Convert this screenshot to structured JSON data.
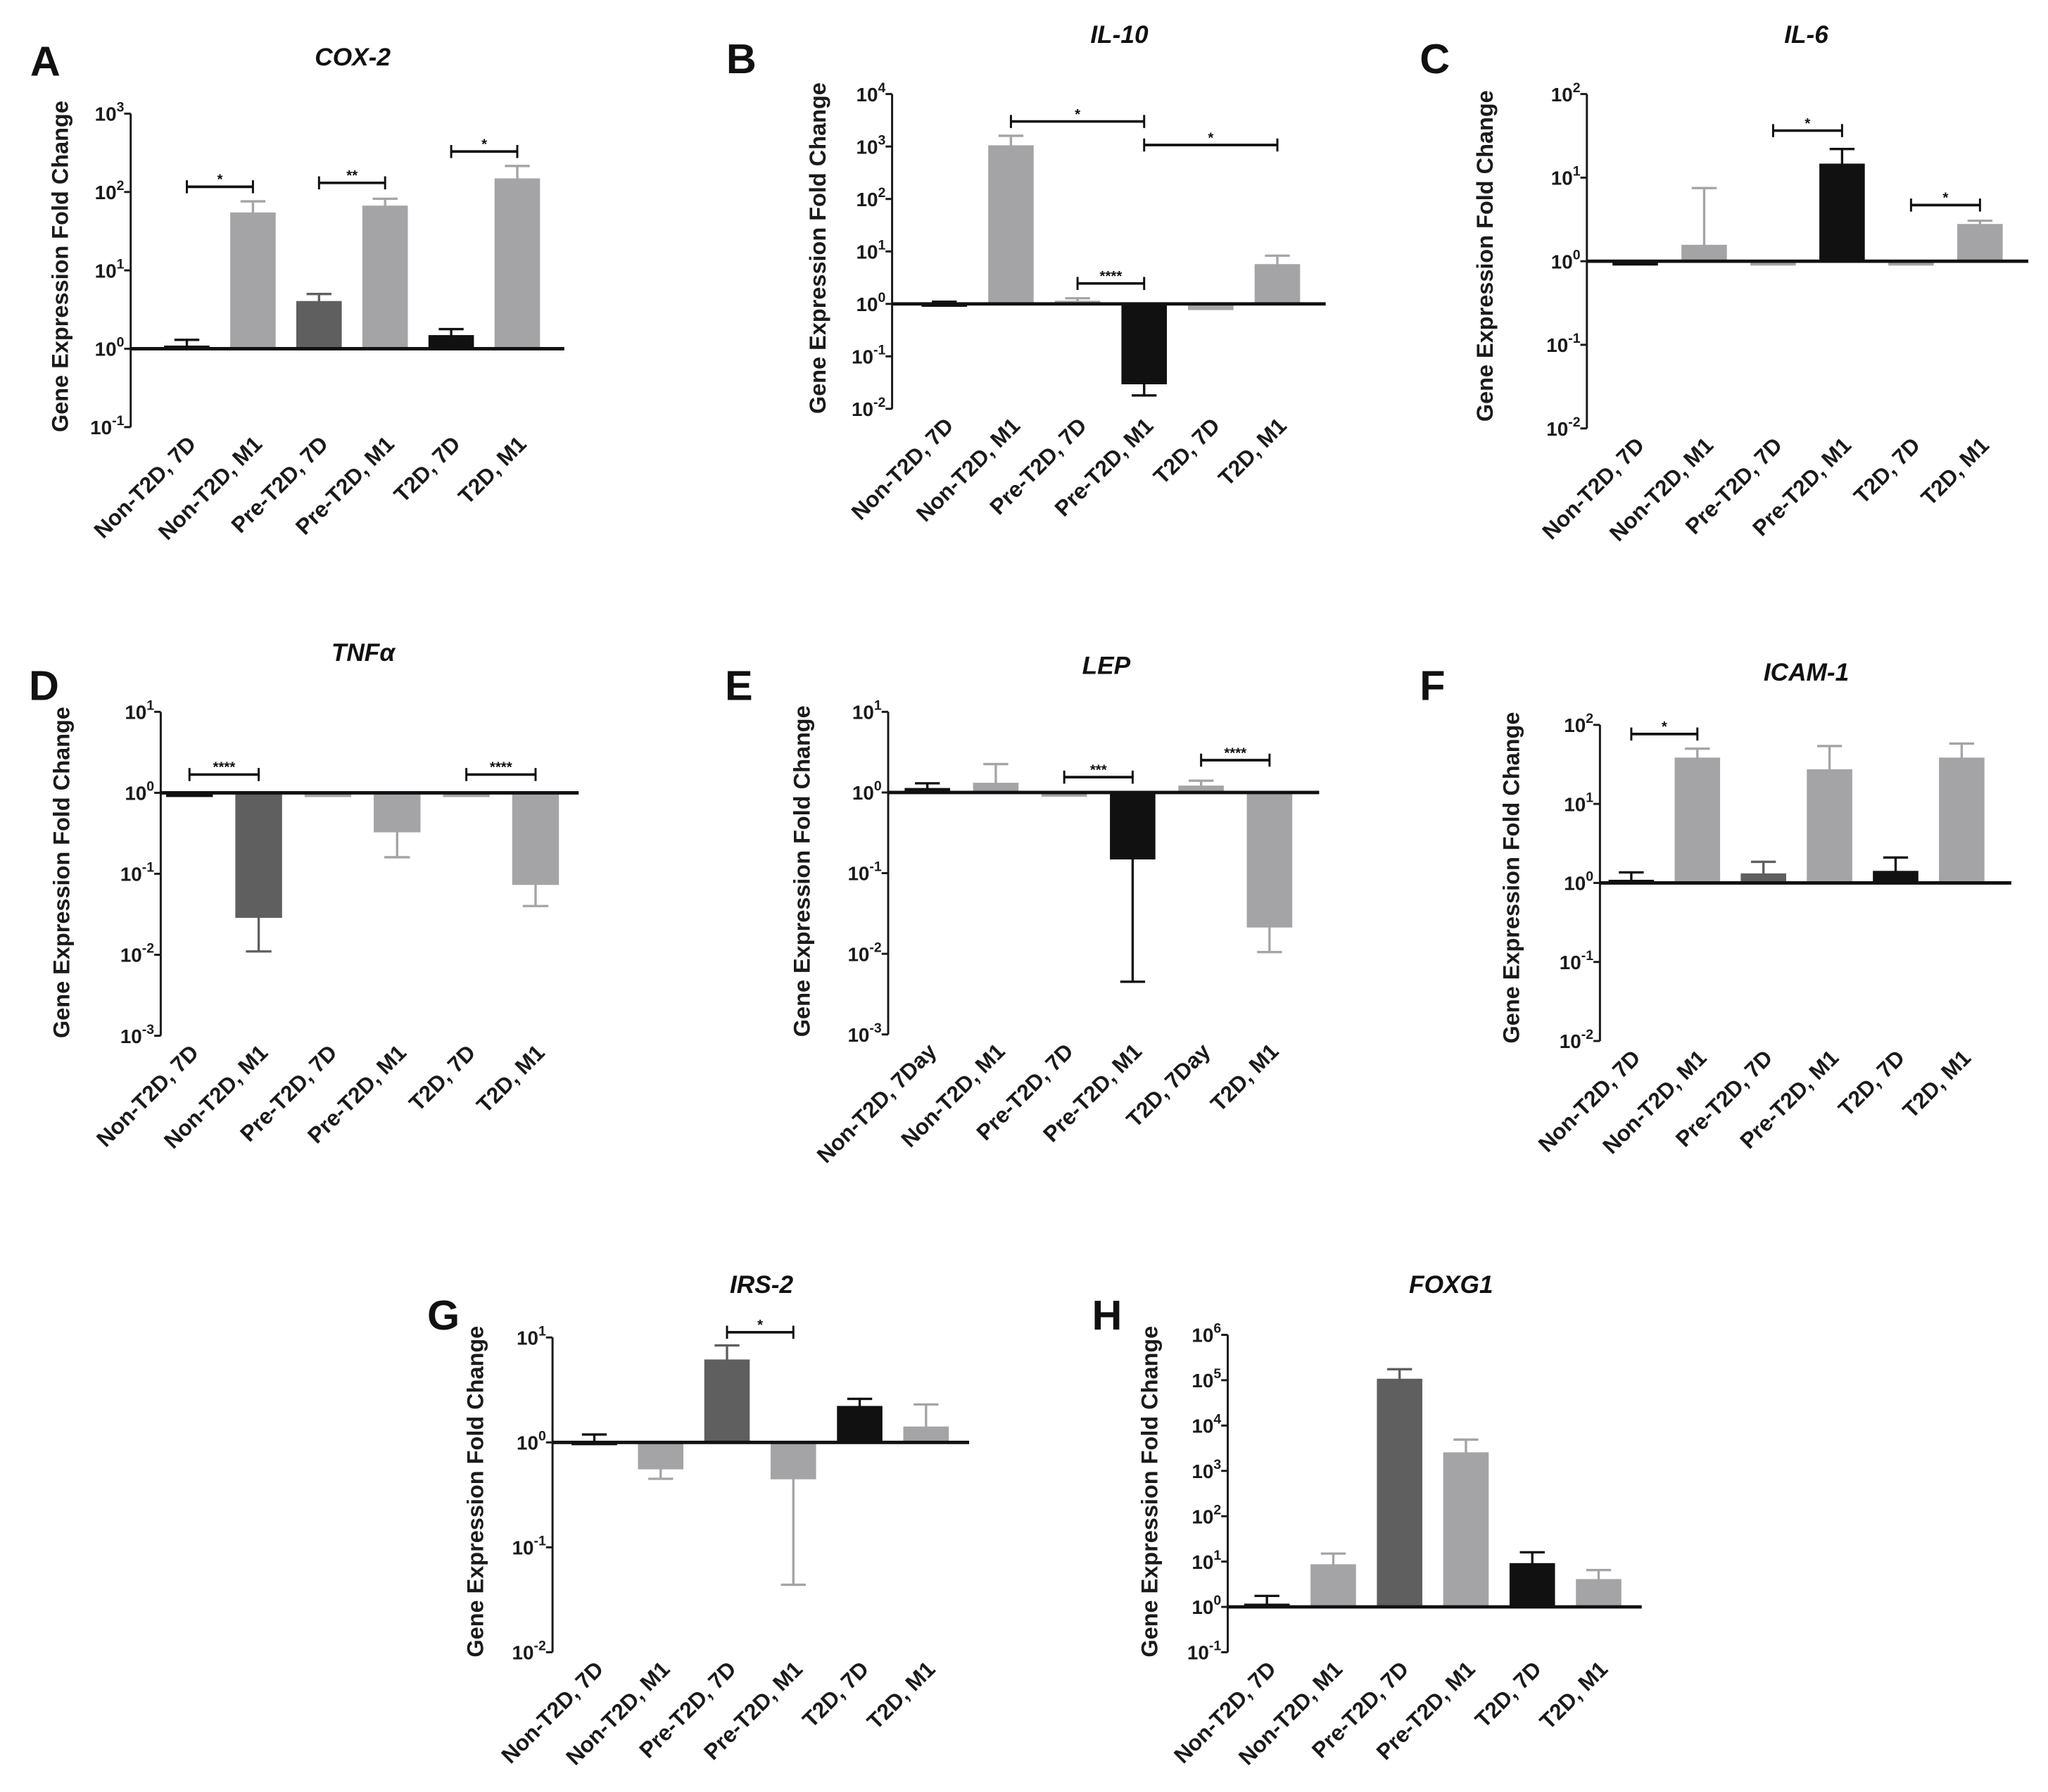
{
  "chart_data": [
    {
      "panel_label": "A",
      "type": "bar",
      "title": "COX-2",
      "ylabel": "Gene Expression Fold Change",
      "ylim": [
        0.1,
        1000
      ],
      "baseline": 1,
      "yticks": [
        {
          "base": "10",
          "exp": "-1"
        },
        {
          "base": "10",
          "exp": "0"
        },
        {
          "base": "10",
          "exp": "1"
        },
        {
          "base": "10",
          "exp": "2"
        },
        {
          "base": "10",
          "exp": "3"
        }
      ],
      "categories": [
        "Non-T2D, 7D",
        "Non-T2D, M1",
        "Pre-T2D, 7D",
        "Pre-T2D, M1",
        "T2D, 7D",
        "T2D, M1"
      ],
      "values": [
        1.08,
        54,
        4.0,
        66,
        1.47,
        147
      ],
      "error_ends": [
        1.3,
        76,
        5.0,
        82,
        1.78,
        215
      ],
      "colors": [
        "#111111",
        "#a4a4a6",
        "#5f5f5f",
        "#a4a4a6",
        "#111111",
        "#a4a4a6"
      ],
      "significance": [
        {
          "from": 0,
          "to": 1,
          "label": "*"
        },
        {
          "from": 2,
          "to": 3,
          "label": "**"
        },
        {
          "from": 4,
          "to": 5,
          "label": "*"
        }
      ]
    },
    {
      "panel_label": "B",
      "type": "bar",
      "title": "IL-10",
      "ylabel": "Gene Expression Fold Change",
      "ylim": [
        0.01,
        10000
      ],
      "baseline": 1,
      "yticks": [
        {
          "base": "10",
          "exp": "-2"
        },
        {
          "base": "10",
          "exp": "-1"
        },
        {
          "base": "10",
          "exp": "0"
        },
        {
          "base": "10",
          "exp": "1"
        },
        {
          "base": "10",
          "exp": "2"
        },
        {
          "base": "10",
          "exp": "3"
        },
        {
          "base": "10",
          "exp": "4"
        }
      ],
      "categories": [
        "Non-T2D, 7D",
        "Non-T2D, M1",
        "Pre-T2D, 7D",
        "Pre-T2D, M1",
        "T2D, 7D",
        "T2D, M1"
      ],
      "values": [
        0.9,
        1030,
        1.12,
        0.03,
        0.78,
        5.6
      ],
      "error_ends": [
        1.1,
        1600,
        1.28,
        0.018,
        null,
        8.3
      ],
      "colors": [
        "#111111",
        "#a4a4a6",
        "#a4a4a6",
        "#111111",
        "#a4a4a6",
        "#a4a4a6"
      ],
      "significance": [
        {
          "from": 1,
          "to": 3,
          "label": "*"
        },
        {
          "from": 3,
          "to": 5,
          "label": "*"
        },
        {
          "from": 2,
          "to": 3,
          "label": "****"
        }
      ]
    },
    {
      "panel_label": "C",
      "type": "bar",
      "title": "IL-6",
      "ylabel": "Gene Expression Fold Change",
      "ylim": [
        0.01,
        100
      ],
      "baseline": 1,
      "yticks": [
        {
          "base": "10",
          "exp": "-2"
        },
        {
          "base": "10",
          "exp": "-1"
        },
        {
          "base": "10",
          "exp": "0"
        },
        {
          "base": "10",
          "exp": "1"
        },
        {
          "base": "10",
          "exp": "2"
        }
      ],
      "categories": [
        "Non-T2D, 7D",
        "Non-T2D, M1",
        "Pre-T2D, 7D",
        "Pre-T2D, M1",
        "T2D, 7D",
        "T2D, M1"
      ],
      "values": [
        0.9,
        1.55,
        0.9,
        14.5,
        0.9,
        2.75
      ],
      "error_ends": [
        null,
        7.5,
        null,
        22,
        null,
        3.05
      ],
      "colors": [
        "#111111",
        "#a4a4a6",
        "#a4a4a6",
        "#111111",
        "#a4a4a6",
        "#a4a4a6"
      ],
      "significance": [
        {
          "from": 2,
          "to": 3,
          "label": "*"
        },
        {
          "from": 4,
          "to": 5,
          "label": "*"
        }
      ]
    },
    {
      "panel_label": "D",
      "type": "bar",
      "title": "TNFα",
      "ylabel": "Gene Expression Fold Change",
      "ylim": [
        0.001,
        10
      ],
      "baseline": 1,
      "yticks": [
        {
          "base": "10",
          "exp": "-3"
        },
        {
          "base": "10",
          "exp": "-2"
        },
        {
          "base": "10",
          "exp": "-1"
        },
        {
          "base": "10",
          "exp": "0"
        },
        {
          "base": "10",
          "exp": "1"
        }
      ],
      "categories": [
        "Non-T2D, 7D",
        "Non-T2D, M1",
        "Pre-T2D, 7D",
        "Pre-T2D, M1",
        "T2D, 7D",
        "T2D, M1"
      ],
      "values": [
        0.9,
        0.029,
        0.9,
        0.33,
        0.9,
        0.074
      ],
      "error_ends": [
        null,
        0.011,
        null,
        0.16,
        null,
        0.04
      ],
      "colors": [
        "#111111",
        "#5f5f5f",
        "#a4a4a6",
        "#a4a4a6",
        "#a4a4a6",
        "#a4a4a6"
      ],
      "significance": [
        {
          "from": 0,
          "to": 1,
          "label": "****"
        },
        {
          "from": 4,
          "to": 5,
          "label": "****"
        }
      ]
    },
    {
      "panel_label": "E",
      "type": "bar",
      "title": "LEP",
      "ylabel": "Gene Expression Fold Change",
      "ylim": [
        0.001,
        10
      ],
      "baseline": 1,
      "yticks": [
        {
          "base": "10",
          "exp": "-3"
        },
        {
          "base": "10",
          "exp": "-2"
        },
        {
          "base": "10",
          "exp": "-1"
        },
        {
          "base": "10",
          "exp": "0"
        },
        {
          "base": "10",
          "exp": "1"
        }
      ],
      "categories": [
        "Non-T2D, 7Day",
        "Non-T2D, M1",
        "Pre-T2D, 7D",
        "Pre-T2D, M1",
        "T2D, 7Day",
        "T2D, M1"
      ],
      "values": [
        1.12,
        1.3,
        0.9,
        0.15,
        1.2,
        0.0215
      ],
      "error_ends": [
        1.3,
        2.25,
        null,
        0.0045,
        1.4,
        0.0105
      ],
      "colors": [
        "#111111",
        "#a4a4a6",
        "#a4a4a6",
        "#111111",
        "#a4a4a6",
        "#a4a4a6"
      ],
      "significance": [
        {
          "from": 2,
          "to": 3,
          "label": "***"
        },
        {
          "from": 4,
          "to": 5,
          "label": "****"
        }
      ]
    },
    {
      "panel_label": "F",
      "type": "bar",
      "title": "ICAM-1",
      "ylabel": "Gene Expression Fold Change",
      "ylim": [
        0.01,
        100
      ],
      "baseline": 1,
      "yticks": [
        {
          "base": "10",
          "exp": "-2"
        },
        {
          "base": "10",
          "exp": "-1"
        },
        {
          "base": "10",
          "exp": "0"
        },
        {
          "base": "10",
          "exp": "1"
        },
        {
          "base": "10",
          "exp": "2"
        }
      ],
      "categories": [
        "Non-T2D, 7D",
        "Non-T2D, M1",
        "Pre-T2D, 7D",
        "Pre-T2D, M1",
        "T2D, 7D",
        "T2D, M1"
      ],
      "values": [
        1.08,
        38,
        1.3,
        27,
        1.4,
        38
      ],
      "error_ends": [
        1.36,
        50,
        1.85,
        54,
        2.1,
        58
      ],
      "colors": [
        "#111111",
        "#a4a4a6",
        "#5f5f5f",
        "#a4a4a6",
        "#111111",
        "#a4a4a6"
      ],
      "significance": [
        {
          "from": 0,
          "to": 1,
          "label": "*"
        }
      ]
    },
    {
      "panel_label": "G",
      "type": "bar",
      "title": "IRS-2",
      "ylabel": "Gene Expression Fold Change",
      "ylim": [
        0.01,
        10
      ],
      "baseline": 1,
      "yticks": [
        {
          "base": "10",
          "exp": "-2"
        },
        {
          "base": "10",
          "exp": "-1"
        },
        {
          "base": "10",
          "exp": "0"
        },
        {
          "base": "10",
          "exp": "1"
        }
      ],
      "categories": [
        "Non-T2D, 7D",
        "Non-T2D, M1",
        "Pre-T2D, 7D",
        "Pre-T2D, M1",
        "T2D, 7D",
        "T2D, M1"
      ],
      "values": [
        0.95,
        0.56,
        6.1,
        0.45,
        2.2,
        1.4
      ],
      "error_ends": [
        1.19,
        0.45,
        8.4,
        0.044,
        2.6,
        2.3
      ],
      "colors": [
        "#111111",
        "#a4a4a6",
        "#5f5f5f",
        "#a4a4a6",
        "#111111",
        "#a4a4a6"
      ],
      "significance": [
        {
          "from": 2,
          "to": 3,
          "label": "*"
        }
      ]
    },
    {
      "panel_label": "H",
      "type": "bar",
      "title": "FOXG1",
      "ylabel": "Gene Expression Fold Change",
      "ylim": [
        0.1,
        1000000
      ],
      "baseline": 1,
      "yticks": [
        {
          "base": "10",
          "exp": "-1"
        },
        {
          "base": "10",
          "exp": "0"
        },
        {
          "base": "10",
          "exp": "1"
        },
        {
          "base": "10",
          "exp": "2"
        },
        {
          "base": "10",
          "exp": "3"
        },
        {
          "base": "10",
          "exp": "4"
        },
        {
          "base": "10",
          "exp": "5"
        },
        {
          "base": "10",
          "exp": "6"
        }
      ],
      "categories": [
        "Non-T2D, 7D",
        "Non-T2D, M1",
        "Pre-T2D, 7D",
        "Pre-T2D, M1",
        "T2D, 7D",
        "T2D, M1"
      ],
      "values": [
        1.15,
        8.5,
        105000,
        2500,
        9,
        4
      ],
      "error_ends": [
        1.75,
        15,
        175000,
        4900,
        16,
        6.5
      ],
      "colors": [
        "#111111",
        "#a4a4a6",
        "#5f5f5f",
        "#a4a4a6",
        "#111111",
        "#a4a4a6"
      ],
      "significance": []
    }
  ]
}
